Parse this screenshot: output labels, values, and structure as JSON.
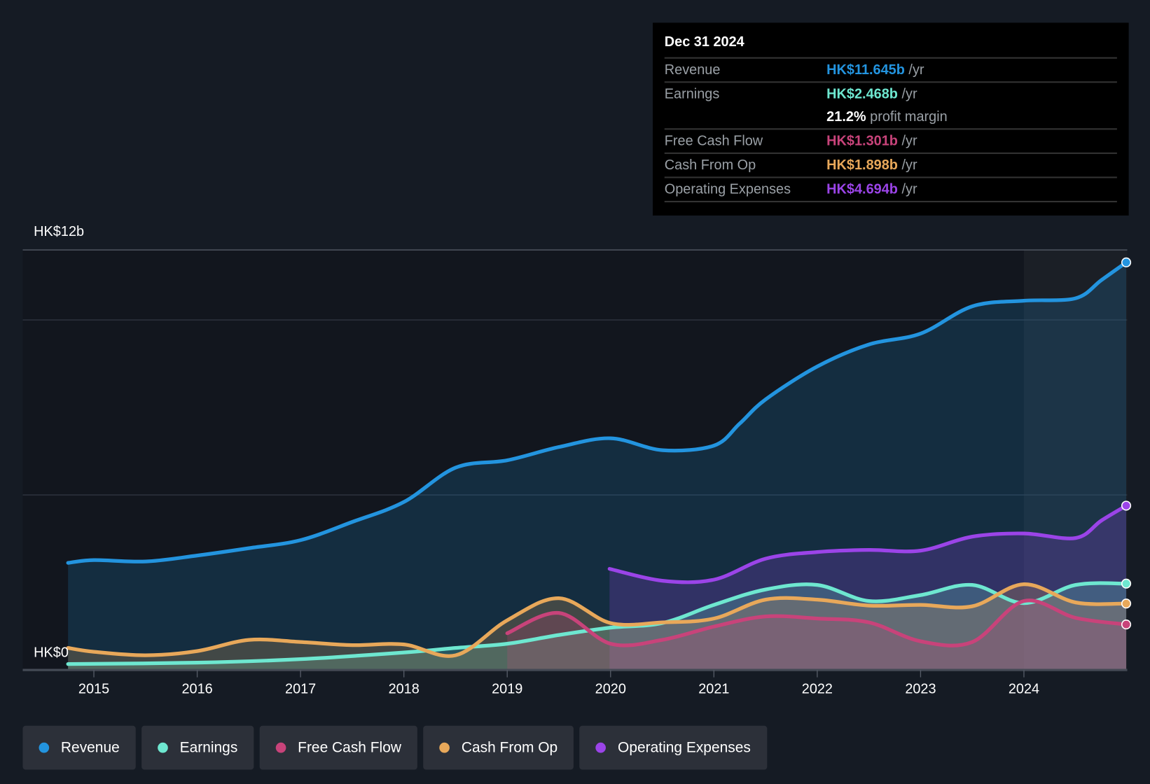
{
  "tooltip": {
    "date": "Dec 31 2024",
    "rows": [
      {
        "label": "Revenue",
        "value": "HK$11.645b",
        "unit": " /yr",
        "color": "#2394df"
      },
      {
        "label": "Earnings",
        "value": "HK$2.468b",
        "unit": " /yr",
        "color": "#6ee7d0"
      },
      {
        "label": "",
        "value": "21.2%",
        "unit": " profit margin",
        "color": "#ffffff"
      },
      {
        "label": "Free Cash Flow",
        "value": "HK$1.301b",
        "unit": " /yr",
        "color": "#c8437a"
      },
      {
        "label": "Cash From Op",
        "value": "HK$1.898b",
        "unit": " /yr",
        "color": "#e8a85a"
      },
      {
        "label": "Operating Expenses",
        "value": "HK$4.694b",
        "unit": " /yr",
        "color": "#9b44e8"
      }
    ]
  },
  "chart_data": {
    "type": "area",
    "title": "",
    "ylabel_top": "HK$12b",
    "ylabel_bottom": "HK$0",
    "ylim": [
      0,
      12
    ],
    "xlim": [
      2014.75,
      2024.99
    ],
    "x_ticks": [
      "2015",
      "2016",
      "2017",
      "2018",
      "2019",
      "2020",
      "2021",
      "2022",
      "2023",
      "2024"
    ],
    "gridlines": [
      5,
      10,
      12
    ],
    "highlight_from": 2024,
    "series": [
      {
        "name": "Revenue",
        "color": "#2394df",
        "x": [
          2014.75,
          2015,
          2015.5,
          2016,
          2016.5,
          2017,
          2017.5,
          2018,
          2018.5,
          2019,
          2019.5,
          2020,
          2020.5,
          2021,
          2021.25,
          2021.5,
          2022,
          2022.5,
          2023,
          2023.5,
          2024,
          2024.5,
          2024.75,
          2024.99
        ],
        "y": [
          3.06,
          3.14,
          3.1,
          3.27,
          3.48,
          3.71,
          4.23,
          4.8,
          5.78,
          5.99,
          6.37,
          6.62,
          6.28,
          6.41,
          7.04,
          7.73,
          8.67,
          9.3,
          9.61,
          10.39,
          10.55,
          10.62,
          11.14,
          11.645
        ]
      },
      {
        "name": "Operating Expenses",
        "color": "#9b44e8",
        "x": [
          2019.99,
          2020.5,
          2021,
          2021.5,
          2022,
          2022.5,
          2023,
          2023.5,
          2024,
          2024.5,
          2024.75,
          2024.99
        ],
        "y": [
          2.89,
          2.55,
          2.58,
          3.18,
          3.37,
          3.43,
          3.41,
          3.81,
          3.9,
          3.77,
          4.27,
          4.694
        ]
      },
      {
        "name": "Earnings",
        "color": "#6ee7d0",
        "x": [
          2014.75,
          2016,
          2017,
          2018,
          2018.5,
          2019,
          2019.5,
          2020,
          2020.5,
          2021,
          2021.5,
          2022,
          2022.5,
          2023,
          2023.5,
          2024,
          2024.5,
          2024.99
        ],
        "y": [
          0.17,
          0.21,
          0.31,
          0.5,
          0.63,
          0.75,
          1.0,
          1.21,
          1.34,
          1.86,
          2.3,
          2.43,
          1.97,
          2.14,
          2.43,
          1.91,
          2.43,
          2.468
        ]
      },
      {
        "name": "Cash From Op",
        "color": "#e8a85a",
        "x": [
          2014.75,
          2015,
          2015.5,
          2016,
          2016.5,
          2017,
          2017.5,
          2018,
          2018.5,
          2019,
          2019.5,
          2020,
          2020.5,
          2021,
          2021.5,
          2022,
          2022.5,
          2023,
          2023.5,
          2024,
          2024.5,
          2024.99
        ],
        "y": [
          0.63,
          0.52,
          0.42,
          0.54,
          0.86,
          0.8,
          0.71,
          0.73,
          0.42,
          1.42,
          2.05,
          1.34,
          1.36,
          1.47,
          2.01,
          2.01,
          1.84,
          1.86,
          1.82,
          2.45,
          1.93,
          1.898
        ]
      },
      {
        "name": "Free Cash Flow",
        "color": "#c8437a",
        "x": [
          2019,
          2019.5,
          2020,
          2020.5,
          2021,
          2021.5,
          2022,
          2022.5,
          2023,
          2023.5,
          2024,
          2024.5,
          2024.99
        ],
        "y": [
          1.05,
          1.63,
          0.75,
          0.86,
          1.24,
          1.53,
          1.47,
          1.36,
          0.82,
          0.8,
          1.97,
          1.49,
          1.301
        ]
      }
    ],
    "legend": [
      "Revenue",
      "Earnings",
      "Free Cash Flow",
      "Cash From Op",
      "Operating Expenses"
    ],
    "legend_placement": "bottom-left"
  }
}
